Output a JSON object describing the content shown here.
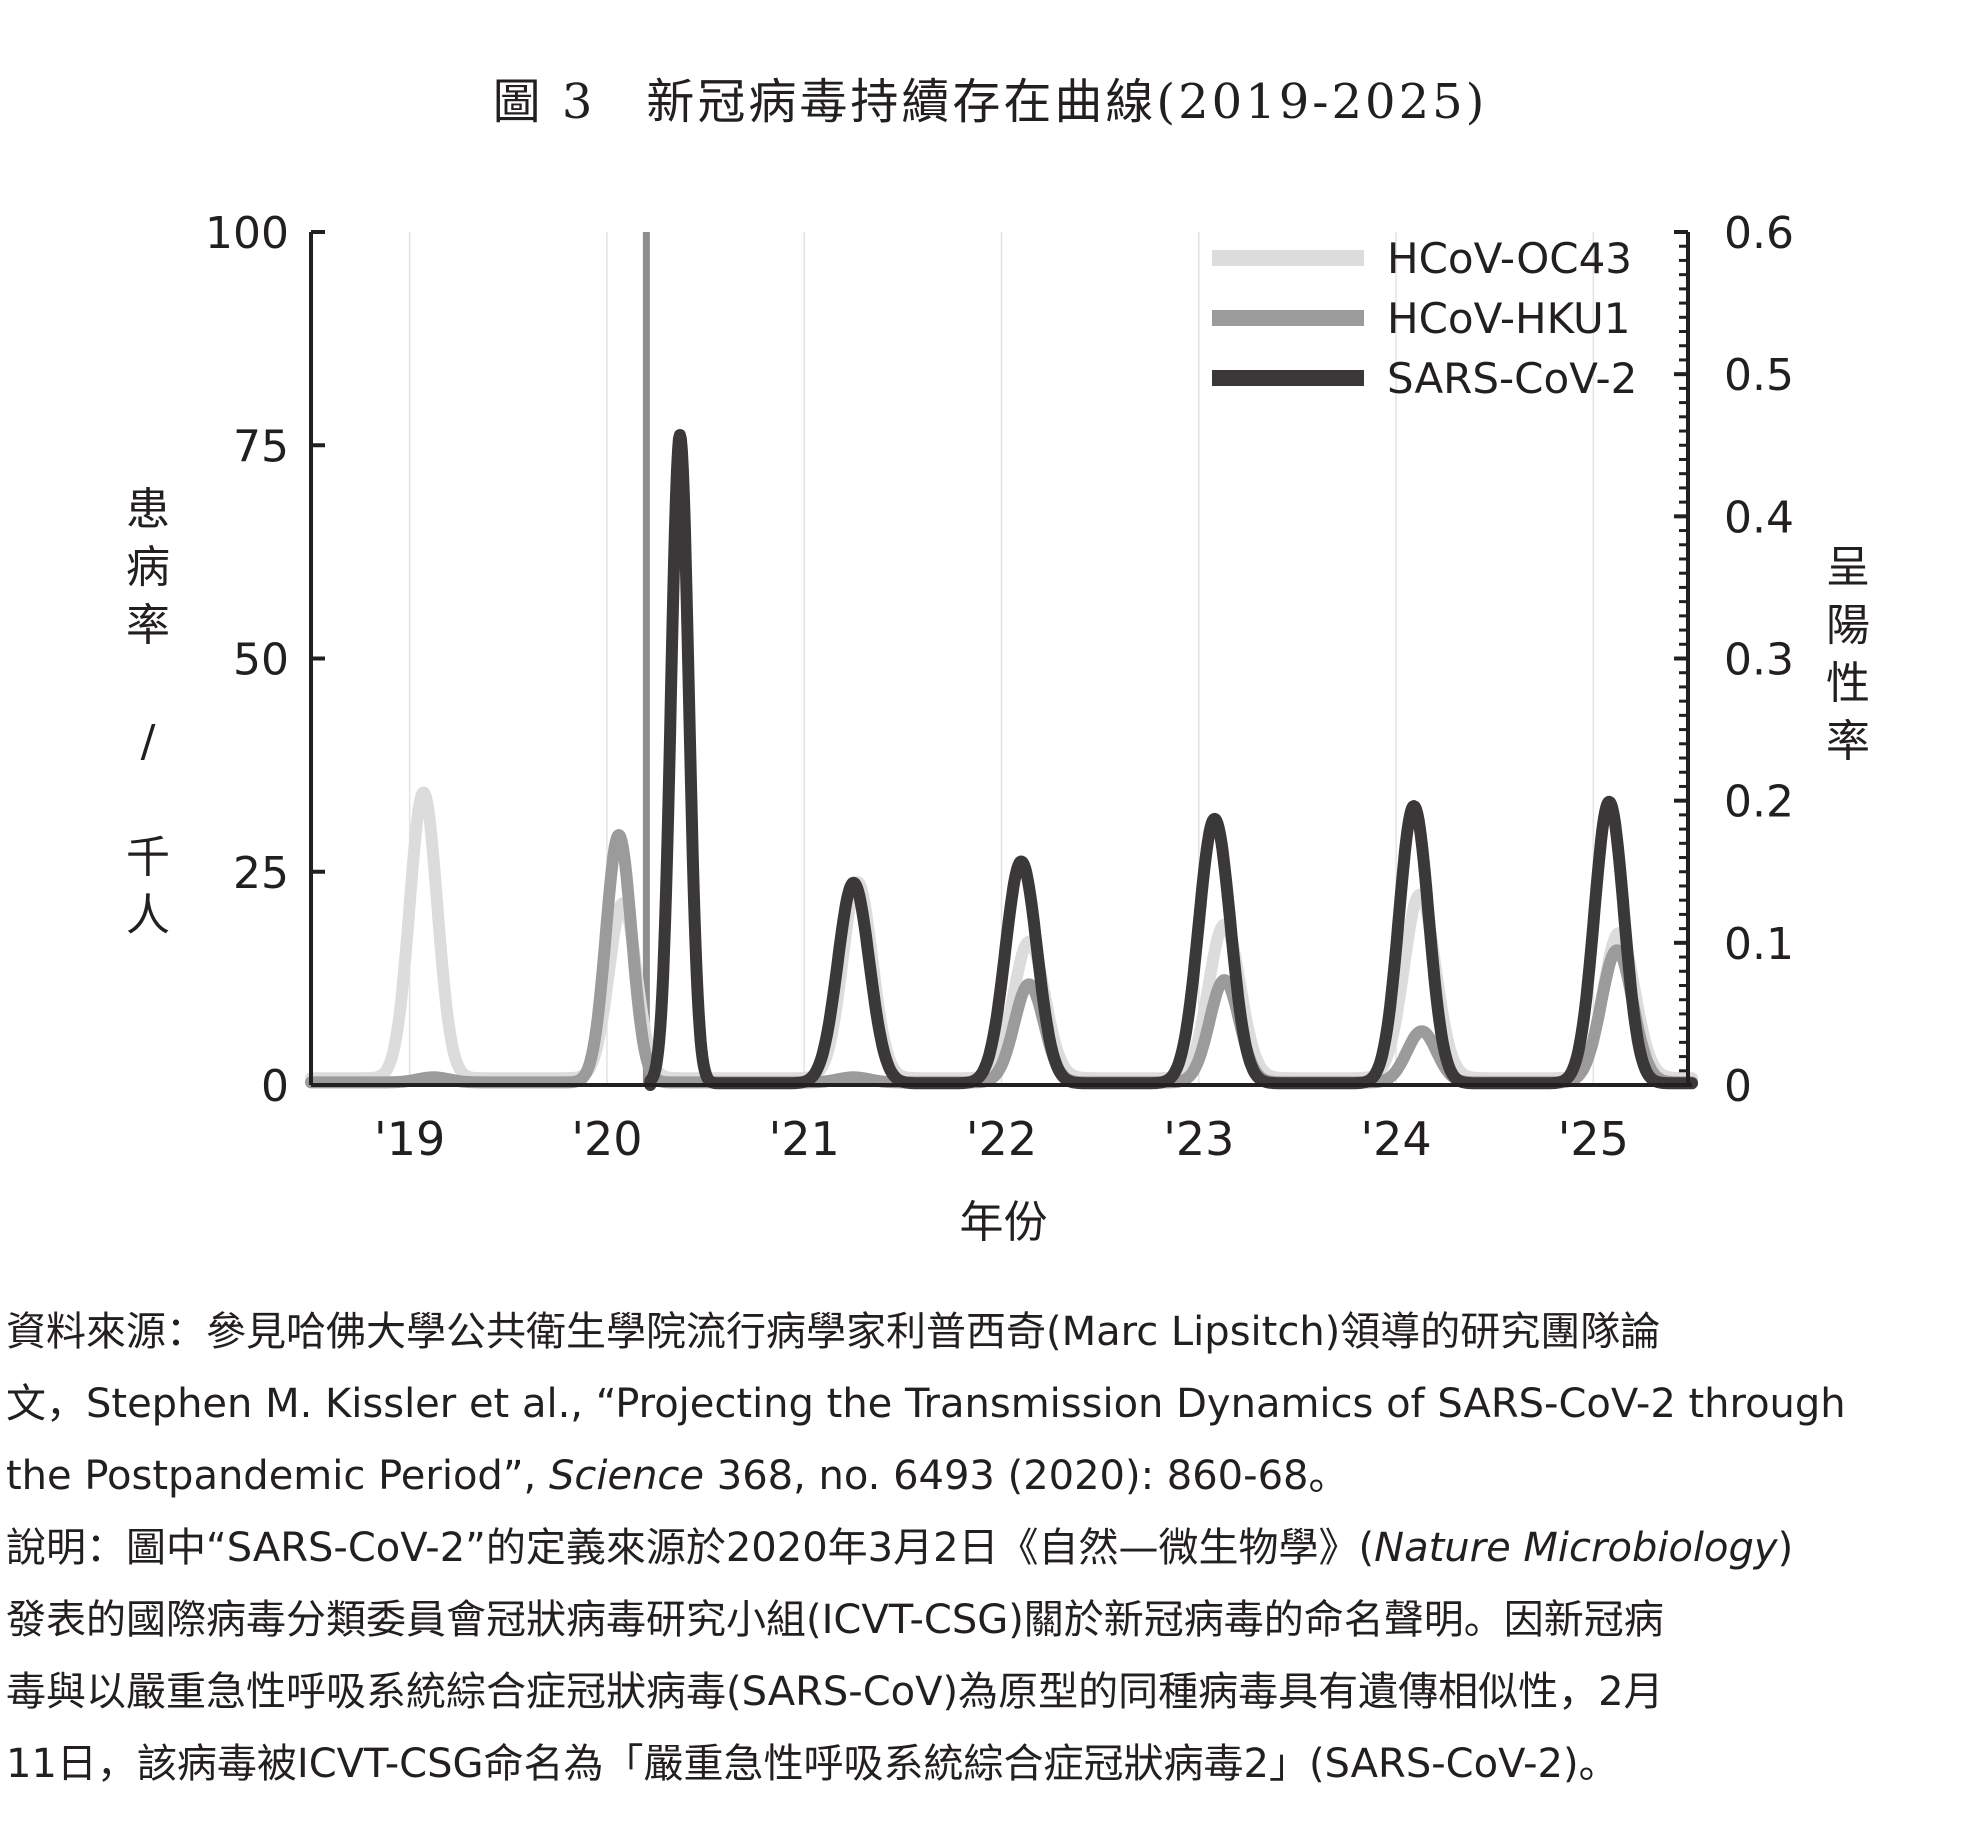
{
  "figure_title": "圖 3　新冠病毒持續存在曲線(2019-2025)",
  "chart_data": {
    "type": "line",
    "title": "圖 3　新冠病毒持續存在曲線(2019-2025)",
    "xlabel": "年份",
    "ylabel_left": "患病率 / 千人",
    "ylabel_right": "呈陽性率",
    "x_ticks": [
      "'19",
      "'20",
      "'21",
      "'22",
      "'23",
      "'24",
      "'25"
    ],
    "xlim": [
      2018.5,
      2025.5
    ],
    "ylim_left": [
      0,
      100
    ],
    "y_ticks_left": [
      0,
      25,
      50,
      75,
      100
    ],
    "ylim_right": [
      0,
      0.6
    ],
    "y_ticks_right": [
      0,
      0.1,
      0.2,
      0.3,
      0.4,
      0.5,
      0.6
    ],
    "legend_position": "top-right",
    "grid": "vertical lines at year ticks",
    "vertical_marker_x": 2020.2,
    "series": [
      {
        "name": "HCoV-OC43",
        "color": "#dcdcdc",
        "baseline": 0.8,
        "peaks": [
          [
            2019.07,
            33.5,
            0.07
          ],
          [
            2020.08,
            20.5,
            0.07
          ],
          [
            2021.27,
            23,
            0.075
          ],
          [
            2022.14,
            16,
            0.08
          ],
          [
            2023.13,
            18,
            0.08
          ],
          [
            2024.12,
            21.5,
            0.08
          ],
          [
            2025.13,
            17,
            0.08
          ]
        ]
      },
      {
        "name": "HCoV-HKU1",
        "color": "#9b9b9b",
        "baseline": 0.3,
        "peaks": [
          [
            2019.12,
            0.6,
            0.08
          ],
          [
            2020.06,
            29,
            0.065
          ],
          [
            2021.25,
            0.6,
            0.08
          ],
          [
            2022.14,
            11.5,
            0.075
          ],
          [
            2023.13,
            12,
            0.075
          ],
          [
            2024.13,
            6,
            0.075
          ],
          [
            2025.12,
            15.5,
            0.08
          ]
        ]
      },
      {
        "name": "SARS-CoV-2",
        "color": "#3a3839",
        "baseline": 0.2,
        "start_x": 2020.22,
        "peaks": [
          [
            2020.37,
            76,
            0.045
          ],
          [
            2021.25,
            23.5,
            0.08
          ],
          [
            2022.1,
            26,
            0.08
          ],
          [
            2023.08,
            31,
            0.08
          ],
          [
            2024.09,
            32.5,
            0.075
          ],
          [
            2025.08,
            33,
            0.075
          ]
        ]
      }
    ]
  },
  "caption": {
    "source_1": "資料來源：參見哈佛大學公共衛生學院流行病學家利普西奇(Marc Lipsitch)領導的研究團隊論",
    "source_2": "文，Stephen M. Kissler et al., “Projecting the Transmission Dynamics of SARS-CoV-2 through",
    "source_3a": "the Postpandemic Period”, ",
    "source_3b": "Science",
    "source_3c": " 368, no. 6493 (2020): 860-68。",
    "note_1a": "說明：圖中“SARS-CoV-2”的定義來源於2020年3月2日《自然—微生物學》(",
    "note_1b": "Nature Microbiology",
    "note_1c": ")",
    "note_2": "發表的國際病毒分類委員會冠狀病毒研究小組(ICVT-CSG)關於新冠病毒的命名聲明。因新冠病",
    "note_3": "毒與以嚴重急性呼吸系統綜合症冠狀病毒(SARS-CoV)為原型的同種病毒具有遺傳相似性，2月",
    "note_4": "11日，該病毒被ICVT-CSG命名為「嚴重急性呼吸系統綜合症冠狀病毒2」(SARS-CoV-2)。"
  }
}
